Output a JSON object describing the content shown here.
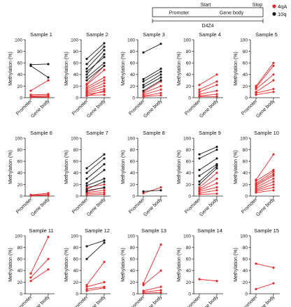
{
  "legend": {
    "items": [
      {
        "label": "4qA",
        "color": "#e8292a"
      },
      {
        "label": "10q",
        "color": "#1a1a1a"
      }
    ]
  },
  "gene_diagram": {
    "start_label": "Start",
    "stop_label": "Stop",
    "promoter_label": "Promoter",
    "gene_body_label": "Gene body",
    "unit_label": "D4Z4"
  },
  "colors": {
    "series_4qA": "#e8292a",
    "series_10q": "#1a1a1a",
    "axis": "#222222"
  },
  "chart_data": [
    {
      "type": "line",
      "title": "Sample 1",
      "ylabel": "Methylation (%)",
      "categories": [
        "Promoter",
        "Gene body"
      ],
      "ylim": [
        0,
        100
      ],
      "yticks": [
        0,
        20,
        40,
        60,
        80,
        100
      ],
      "series": [
        {
          "group": "10q",
          "values": [
            57,
            58
          ]
        },
        {
          "group": "10q",
          "values": [
            55,
            35
          ]
        },
        {
          "group": "4qA",
          "values": [
            12,
            30
          ]
        },
        {
          "group": "4qA",
          "values": [
            5,
            6
          ]
        },
        {
          "group": "4qA",
          "values": [
            3,
            4
          ]
        },
        {
          "group": "4qA",
          "values": [
            2,
            2
          ]
        },
        {
          "group": "4qA",
          "values": [
            1,
            1
          ]
        }
      ]
    },
    {
      "type": "line",
      "title": "Sample 2",
      "ylabel": "Methylation (%)",
      "categories": [
        "Promoter",
        "Gene body"
      ],
      "ylim": [
        0,
        100
      ],
      "yticks": [
        0,
        20,
        40,
        60,
        80,
        100
      ],
      "series": [
        {
          "group": "10q",
          "values": [
            67,
            94
          ]
        },
        {
          "group": "10q",
          "values": [
            58,
            88
          ]
        },
        {
          "group": "10q",
          "values": [
            50,
            82
          ]
        },
        {
          "group": "10q",
          "values": [
            45,
            70
          ]
        },
        {
          "group": "10q",
          "values": [
            40,
            75
          ]
        },
        {
          "group": "10q",
          "values": [
            35,
            60
          ]
        },
        {
          "group": "10q",
          "values": [
            30,
            55
          ]
        },
        {
          "group": "4qA",
          "values": [
            24,
            55
          ]
        },
        {
          "group": "4qA",
          "values": [
            22,
            48
          ]
        },
        {
          "group": "4qA",
          "values": [
            18,
            35
          ]
        },
        {
          "group": "4qA",
          "values": [
            15,
            30
          ]
        },
        {
          "group": "4qA",
          "values": [
            12,
            25
          ]
        },
        {
          "group": "4qA",
          "values": [
            10,
            20
          ]
        },
        {
          "group": "4qA",
          "values": [
            8,
            15
          ]
        },
        {
          "group": "4qA",
          "values": [
            6,
            10
          ]
        },
        {
          "group": "4qA",
          "values": [
            4,
            5
          ]
        },
        {
          "group": "4qA",
          "values": [
            3,
            12
          ]
        }
      ]
    },
    {
      "type": "line",
      "title": "Sample 3",
      "ylabel": "Methylation (%)",
      "categories": [
        "Promoter",
        "Gene body"
      ],
      "ylim": [
        0,
        100
      ],
      "yticks": [
        0,
        20,
        40,
        60,
        80,
        100
      ],
      "series": [
        {
          "group": "10q",
          "values": [
            78,
            93
          ]
        },
        {
          "group": "10q",
          "values": [
            32,
            50
          ]
        },
        {
          "group": "10q",
          "values": [
            28,
            45
          ]
        },
        {
          "group": "10q",
          "values": [
            22,
            40
          ]
        },
        {
          "group": "10q",
          "values": [
            18,
            35
          ]
        },
        {
          "group": "10q",
          "values": [
            12,
            30
          ]
        },
        {
          "group": "4qA",
          "values": [
            10,
            28
          ]
        },
        {
          "group": "4qA",
          "values": [
            8,
            20
          ]
        },
        {
          "group": "4qA",
          "values": [
            5,
            14
          ]
        },
        {
          "group": "4qA",
          "values": [
            3,
            8
          ]
        },
        {
          "group": "4qA",
          "values": [
            2,
            4
          ]
        }
      ]
    },
    {
      "type": "line",
      "title": "Sample 4",
      "ylabel": "Methylation (%)",
      "categories": [
        "Promoter",
        "Gene body"
      ],
      "ylim": [
        0,
        100
      ],
      "yticks": [
        0,
        20,
        40,
        60,
        80,
        100
      ],
      "series": [
        {
          "group": "4qA",
          "values": [
            22,
            40
          ]
        },
        {
          "group": "4qA",
          "values": [
            14,
            28
          ]
        },
        {
          "group": "4qA",
          "values": [
            10,
            22
          ]
        },
        {
          "group": "4qA",
          "values": [
            6,
            12
          ]
        },
        {
          "group": "4qA",
          "values": [
            3,
            6
          ]
        },
        {
          "group": "4qA",
          "values": [
            2,
            2
          ]
        }
      ]
    },
    {
      "type": "line",
      "title": "Sample 5",
      "ylabel": "Methylation (%)",
      "categories": [
        "Promoter",
        "Gene body"
      ],
      "ylim": [
        0,
        100
      ],
      "yticks": [
        0,
        20,
        40,
        60,
        80,
        100
      ],
      "series": [
        {
          "group": "4qA",
          "values": [
            20,
            60
          ]
        },
        {
          "group": "4qA",
          "values": [
            18,
            55
          ]
        },
        {
          "group": "4qA",
          "values": [
            15,
            40
          ]
        },
        {
          "group": "4qA",
          "values": [
            10,
            30
          ]
        },
        {
          "group": "4qA",
          "values": [
            8,
            15
          ]
        },
        {
          "group": "4qA",
          "values": [
            5,
            10
          ]
        }
      ]
    },
    {
      "type": "line",
      "title": "Sample 6",
      "ylabel": "Methylation (%)",
      "categories": [
        "Promoter",
        "Gene body"
      ],
      "ylim": [
        0,
        100
      ],
      "yticks": [
        0,
        20,
        40,
        60,
        80,
        100
      ],
      "series": [
        {
          "group": "4qA",
          "values": [
            2,
            5
          ]
        },
        {
          "group": "4qA",
          "values": [
            1,
            3
          ]
        },
        {
          "group": "4qA",
          "values": [
            1,
            1
          ]
        }
      ]
    },
    {
      "type": "line",
      "title": "Sample 7",
      "ylabel": "Methylation (%)",
      "categories": [
        "Promoter",
        "Gene body"
      ],
      "ylim": [
        0,
        100
      ],
      "yticks": [
        0,
        20,
        40,
        60,
        80,
        100
      ],
      "series": [
        {
          "group": "10q",
          "values": [
            48,
            72
          ]
        },
        {
          "group": "10q",
          "values": [
            40,
            65
          ]
        },
        {
          "group": "10q",
          "values": [
            30,
            55
          ]
        },
        {
          "group": "10q",
          "values": [
            22,
            45
          ]
        },
        {
          "group": "10q",
          "values": [
            18,
            30
          ]
        },
        {
          "group": "10q",
          "values": [
            12,
            25
          ]
        },
        {
          "group": "10q",
          "values": [
            8,
            15
          ]
        },
        {
          "group": "4qA",
          "values": [
            15,
            20
          ]
        },
        {
          "group": "4qA",
          "values": [
            10,
            14
          ]
        },
        {
          "group": "4qA",
          "values": [
            6,
            10
          ]
        },
        {
          "group": "4qA",
          "values": [
            4,
            6
          ]
        },
        {
          "group": "4qA",
          "values": [
            2,
            3
          ]
        }
      ]
    },
    {
      "type": "line",
      "title": "Sample 8",
      "ylabel": "Methylation (%)",
      "categories": [
        "Promoter",
        "Gene body"
      ],
      "ylim": [
        0,
        100
      ],
      "yticks": [
        0,
        20,
        40,
        60,
        80,
        100
      ],
      "series": [
        {
          "group": "10q",
          "values": [
            8,
            10
          ]
        },
        {
          "group": "4qA",
          "values": [
            5,
            15
          ]
        }
      ]
    },
    {
      "type": "line",
      "title": "Sample 9",
      "ylabel": "Methylation (%)",
      "categories": [
        "Promoter",
        "Gene body"
      ],
      "ylim": [
        0,
        100
      ],
      "yticks": [
        0,
        20,
        40,
        60,
        80,
        100
      ],
      "series": [
        {
          "group": "10q",
          "values": [
            72,
            85
          ]
        },
        {
          "group": "10q",
          "values": [
            65,
            80
          ]
        },
        {
          "group": "10q",
          "values": [
            45,
            65
          ]
        },
        {
          "group": "10q",
          "values": [
            35,
            55
          ]
        },
        {
          "group": "10q",
          "values": [
            25,
            52
          ]
        },
        {
          "group": "10q",
          "values": [
            20,
            48
          ]
        },
        {
          "group": "4qA",
          "values": [
            15,
            40
          ]
        },
        {
          "group": "4qA",
          "values": [
            12,
            30
          ]
        },
        {
          "group": "4qA",
          "values": [
            10,
            22
          ]
        },
        {
          "group": "4qA",
          "values": [
            8,
            15
          ]
        },
        {
          "group": "4qA",
          "values": [
            5,
            10
          ]
        },
        {
          "group": "4qA",
          "values": [
            3,
            4
          ]
        }
      ]
    },
    {
      "type": "line",
      "title": "Sample 10",
      "ylabel": "Methylation (%)",
      "categories": [
        "Promoter",
        "Gene body"
      ],
      "ylim": [
        0,
        100
      ],
      "yticks": [
        0,
        20,
        40,
        60,
        80,
        100
      ],
      "series": [
        {
          "group": "4qA",
          "values": [
            28,
            72
          ]
        },
        {
          "group": "4qA",
          "values": [
            26,
            45
          ]
        },
        {
          "group": "4qA",
          "values": [
            22,
            42
          ]
        },
        {
          "group": "4qA",
          "values": [
            20,
            38
          ]
        },
        {
          "group": "4qA",
          "values": [
            18,
            35
          ]
        },
        {
          "group": "4qA",
          "values": [
            15,
            30
          ]
        },
        {
          "group": "4qA",
          "values": [
            12,
            25
          ]
        },
        {
          "group": "4qA",
          "values": [
            10,
            20
          ]
        },
        {
          "group": "4qA",
          "values": [
            8,
            15
          ]
        },
        {
          "group": "4qA",
          "values": [
            6,
            10
          ]
        }
      ]
    },
    {
      "type": "line",
      "title": "Sample 11",
      "ylabel": "Methylation (%)",
      "categories": [
        "Promoter",
        "Gene body"
      ],
      "ylim": [
        0,
        100
      ],
      "yticks": [
        0,
        20,
        40,
        60,
        80,
        100
      ],
      "series": [
        {
          "group": "4qA",
          "values": [
            35,
            98
          ]
        },
        {
          "group": "4qA",
          "values": [
            28,
            60
          ]
        },
        {
          "group": "4qA",
          "values": [
            22,
            42
          ]
        }
      ]
    },
    {
      "type": "line",
      "title": "Sample 12",
      "ylabel": "Methylation (%)",
      "categories": [
        "Promoter",
        "Gene body"
      ],
      "ylim": [
        0,
        100
      ],
      "yticks": [
        0,
        20,
        40,
        60,
        80,
        100
      ],
      "series": [
        {
          "group": "10q",
          "values": [
            82,
            92
          ]
        },
        {
          "group": "10q",
          "values": [
            60,
            88
          ]
        },
        {
          "group": "4qA",
          "values": [
            15,
            55
          ]
        },
        {
          "group": "4qA",
          "values": [
            12,
            20
          ]
        },
        {
          "group": "4qA",
          "values": [
            8,
            12
          ]
        },
        {
          "group": "4qA",
          "values": [
            5,
            10
          ]
        }
      ]
    },
    {
      "type": "line",
      "title": "Sample 13",
      "ylabel": "Methylation (%)",
      "categories": [
        "Promoter",
        "Gene body"
      ],
      "ylim": [
        0,
        100
      ],
      "yticks": [
        0,
        20,
        40,
        60,
        80,
        100
      ],
      "series": [
        {
          "group": "4qA",
          "values": [
            18,
            85
          ]
        },
        {
          "group": "4qA",
          "values": [
            15,
            40
          ]
        },
        {
          "group": "4qA",
          "values": [
            5,
            12
          ]
        },
        {
          "group": "4qA",
          "values": [
            3,
            6
          ]
        },
        {
          "group": "4qA",
          "values": [
            1,
            2
          ]
        }
      ]
    },
    {
      "type": "line",
      "title": "Sample 14",
      "ylabel": "Methylation (%)",
      "categories": [
        "Promoter",
        "Gene body"
      ],
      "ylim": [
        0,
        100
      ],
      "yticks": [
        0,
        20,
        40,
        60,
        80,
        100
      ],
      "series": [
        {
          "group": "4qA",
          "values": [
            25,
            22
          ]
        }
      ]
    },
    {
      "type": "line",
      "title": "Sample 15",
      "ylabel": "Methylation (%)",
      "categories": [
        "Promoter",
        "Gene body"
      ],
      "ylim": [
        0,
        100
      ],
      "yticks": [
        0,
        20,
        40,
        60,
        80,
        100
      ],
      "series": [
        {
          "group": "4qA",
          "values": [
            52,
            45
          ]
        },
        {
          "group": "4qA",
          "values": [
            8,
            18
          ]
        }
      ]
    }
  ]
}
